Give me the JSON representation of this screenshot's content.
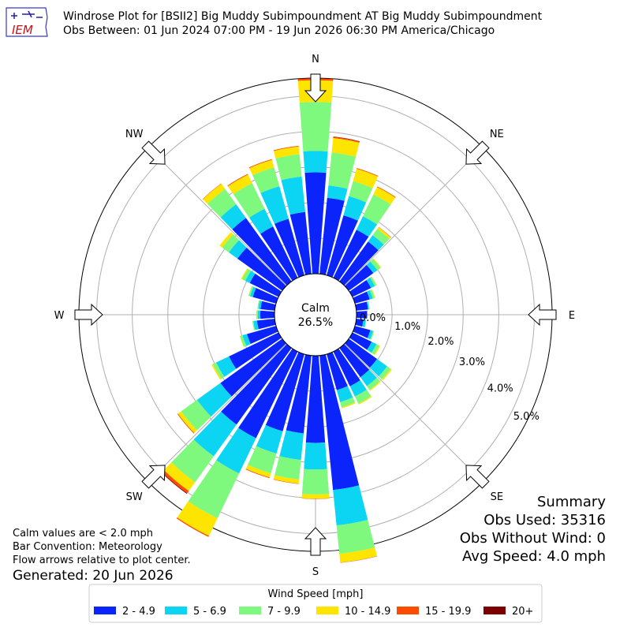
{
  "header": {
    "logo_text": "IEM",
    "title": "Windrose Plot for [BSII2] Big Muddy Subimpoundment  AT Big Muddy Subimpoundment",
    "subtitle": "Obs Between: 01 Jun 2024 07:00 PM - 19 Jun 2026 06:30 PM America/Chicago"
  },
  "footer": {
    "notes": [
      "Calm values are < 2.0 mph",
      "Bar Convention: Meteorology",
      "Flow arrows relative to plot center."
    ],
    "generated": "Generated: 20 Jun 2026"
  },
  "summary": {
    "heading": "Summary",
    "obs_used": "Obs Used: 35316",
    "obs_without_wind": "Obs Without Wind: 0",
    "avg_speed": "Avg Speed: 4.0 mph"
  },
  "chart_data": {
    "type": "windrose",
    "calm_label": "Calm",
    "calm_pct_label": "26.5%",
    "calm_pct": 26.5,
    "compass_labels": [
      "N",
      "NE",
      "E",
      "SE",
      "S",
      "SW",
      "W",
      "NW"
    ],
    "radial_ticks": [
      0.0,
      1.0,
      2.0,
      3.0,
      4.0,
      5.0
    ],
    "radial_tick_labels": [
      "0.0%",
      "1.0%",
      "2.0%",
      "3.0%",
      "4.0%",
      "5.0%"
    ],
    "rmax": 5.5,
    "legend": {
      "title": "Wind Speed [mph]",
      "bins": [
        "2 - 4.9",
        "5 - 6.9",
        "7 - 9.9",
        "10 - 14.9",
        "15 - 19.9",
        "20+"
      ],
      "colors": [
        "#0b24fb",
        "#0bd5f2",
        "#7ef87d",
        "#fee500",
        "#fd4c00",
        "#7d0000"
      ]
    },
    "directions_deg": [
      0,
      10,
      20,
      30,
      40,
      50,
      60,
      70,
      80,
      90,
      100,
      110,
      120,
      130,
      140,
      150,
      160,
      170,
      180,
      190,
      200,
      210,
      220,
      230,
      240,
      250,
      260,
      270,
      280,
      290,
      300,
      310,
      320,
      330,
      340,
      350
    ],
    "cumulative_pct": [
      [
        2.85,
        3.45,
        4.83,
        5.44,
        5.49,
        5.5
      ],
      [
        2.15,
        2.5,
        3.43,
        3.84,
        3.87,
        3.88
      ],
      [
        1.75,
        2.31,
        2.75,
        3.11,
        3.13,
        3.13
      ],
      [
        1.5,
        1.92,
        2.6,
        2.83,
        2.85,
        2.85
      ],
      [
        1.38,
        1.6,
        1.82,
        1.88,
        1.89,
        1.89
      ],
      [
        0.85,
        0.99,
        1.1,
        1.12,
        1.12,
        1.12
      ],
      [
        0.58,
        0.7,
        0.75,
        0.76,
        0.76,
        0.76
      ],
      [
        0.43,
        0.52,
        0.58,
        0.59,
        0.59,
        0.59
      ],
      [
        0.33,
        0.36,
        0.38,
        0.38,
        0.38,
        0.38
      ],
      [
        0.3,
        0.3,
        0.3,
        0.3,
        0.3,
        0.3
      ],
      [
        0.2,
        0.27,
        0.28,
        0.28,
        0.28,
        0.28
      ],
      [
        0.45,
        0.53,
        0.56,
        0.56,
        0.56,
        0.56
      ],
      [
        0.6,
        0.75,
        0.84,
        0.87,
        0.87,
        0.87
      ],
      [
        0.98,
        1.33,
        1.45,
        1.49,
        1.49,
        1.49
      ],
      [
        1.01,
        1.32,
        1.45,
        1.48,
        1.48,
        1.48
      ],
      [
        1.08,
        1.4,
        1.62,
        1.65,
        1.65,
        1.65
      ],
      [
        1.05,
        1.4,
        1.55,
        1.58,
        1.58,
        1.58
      ],
      [
        3.8,
        4.8,
        5.6,
        5.85,
        5.86,
        5.86
      ],
      [
        2.45,
        3.2,
        3.9,
        4.02,
        4.03,
        4.03
      ],
      [
        2.2,
        2.95,
        3.5,
        3.62,
        3.63,
        3.63
      ],
      [
        2.25,
        2.9,
        3.48,
        3.6,
        3.62,
        3.62
      ],
      [
        2.7,
        3.8,
        5.2,
        5.75,
        5.78,
        5.78
      ],
      [
        2.65,
        3.75,
        4.65,
        4.95,
        5.03,
        5.05
      ],
      [
        2.14,
        2.95,
        3.5,
        3.61,
        3.63,
        3.63
      ],
      [
        1.55,
        1.95,
        2.05,
        2.09,
        2.09,
        2.09
      ],
      [
        0.85,
        0.98,
        1.05,
        1.06,
        1.06,
        1.06
      ],
      [
        0.5,
        0.6,
        0.63,
        0.63,
        0.63,
        0.63
      ],
      [
        0.4,
        0.47,
        0.51,
        0.51,
        0.51,
        0.51
      ],
      [
        0.4,
        0.46,
        0.49,
        0.49,
        0.49,
        0.49
      ],
      [
        0.68,
        0.76,
        0.8,
        0.81,
        0.81,
        0.81
      ],
      [
        0.9,
        1.04,
        1.14,
        1.17,
        1.17,
        1.17
      ],
      [
        1.55,
        1.85,
        2.08,
        2.17,
        2.17,
        2.17
      ],
      [
        2.2,
        2.67,
        3.2,
        3.38,
        3.39,
        3.39
      ],
      [
        1.6,
        2.15,
        2.95,
        3.22,
        3.24,
        3.24
      ],
      [
        1.65,
        2.6,
        3.15,
        3.37,
        3.39,
        3.39
      ],
      [
        1.75,
        2.75,
        3.38,
        3.6,
        3.62,
        3.62
      ]
    ]
  }
}
